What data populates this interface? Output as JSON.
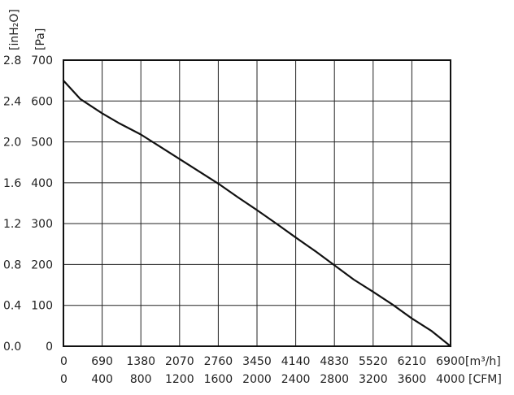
{
  "chart_data": {
    "type": "line",
    "title": "",
    "grid": true,
    "x_axis": {
      "primary_unit": "[m³/h]",
      "secondary_unit": "[CFM]",
      "range": [
        0,
        6900
      ],
      "primary_ticks": [
        "0",
        "690",
        "1380",
        "2070",
        "2760",
        "3450",
        "4140",
        "4830",
        "5520",
        "6210",
        "6900"
      ],
      "secondary_ticks": [
        "0",
        "400",
        "800",
        "1200",
        "1600",
        "2000",
        "2400",
        "2800",
        "3200",
        "3600",
        "4000"
      ]
    },
    "y_axis": {
      "primary_unit": "[Pa]",
      "secondary_unit": "[inH₂O]",
      "range": [
        0,
        700
      ],
      "primary_ticks": [
        "0",
        "100",
        "200",
        "300",
        "400",
        "500",
        "600",
        "700"
      ],
      "secondary_ticks": [
        "0.0",
        "0.4",
        "0.8",
        "1.2",
        "1.6",
        "2.0",
        "2.4",
        "2.8"
      ]
    },
    "series": [
      {
        "x": [
          0,
          300,
          690,
          1000,
          1380,
          1725,
          2070,
          2415,
          2760,
          3105,
          3450,
          3795,
          4140,
          4485,
          4830,
          5175,
          5520,
          5865,
          6210,
          6555,
          6900
        ],
        "y": [
          650,
          605,
          570,
          545,
          518,
          488,
          458,
          428,
          398,
          365,
          333,
          300,
          266,
          233,
          198,
          163,
          133,
          102,
          68,
          38,
          0
        ]
      }
    ]
  }
}
